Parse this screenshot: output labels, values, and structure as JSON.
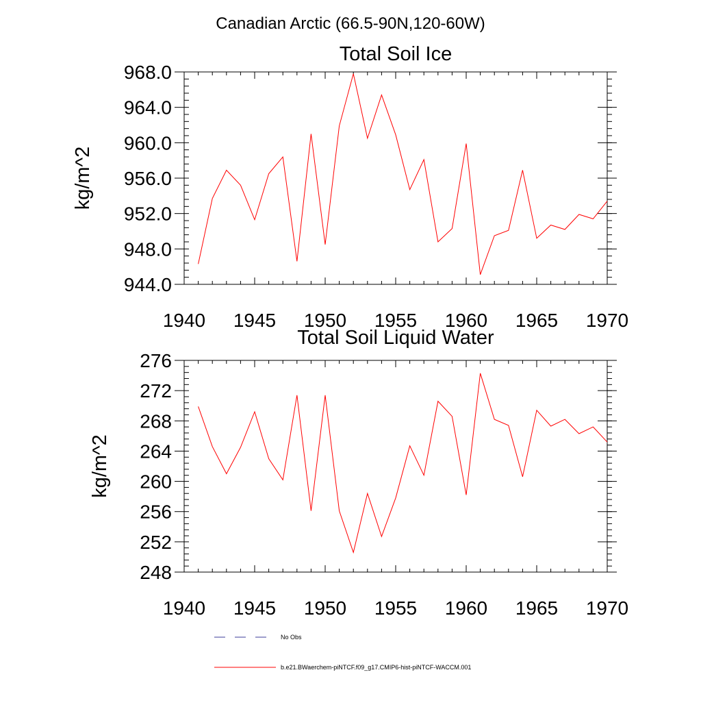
{
  "figure": {
    "main_title": "Canadian Arctic (66.5-90N,120-60W)"
  },
  "legend": {
    "placement": "bottom",
    "items": [
      {
        "label": "No Obs",
        "color": "#3b3b9a",
        "style": "dashed"
      },
      {
        "label": "b.e21.BWaerchem-piNTCF.f09_g17.CMIP6-hist-piNTCF-WACCM.001",
        "color": "#ff0000",
        "style": "solid"
      }
    ]
  },
  "chart_data": [
    {
      "type": "line",
      "title": "Total Soil Ice",
      "xlabel": "",
      "ylabel": "kg/m^2",
      "xlim": [
        1940,
        1970
      ],
      "ylim": [
        944,
        968
      ],
      "xticks": [
        1940,
        1945,
        1950,
        1955,
        1960,
        1965,
        1970
      ],
      "xtick_labels": [
        "1940",
        "1945",
        "1950",
        "1955",
        "1960",
        "1965",
        "1970"
      ],
      "yticks": [
        944,
        948,
        952,
        956,
        960,
        964,
        968
      ],
      "ytick_labels": [
        "944.0",
        "948.0",
        "952.0",
        "956.0",
        "960.0",
        "964.0",
        "968.0"
      ],
      "grid": false,
      "series": [
        {
          "name": "b.e21.BWaerchem-piNTCF.f09_g17.CMIP6-hist-piNTCF-WACCM.001",
          "color": "#ff0000",
          "x": [
            1941,
            1942,
            1943,
            1944,
            1945,
            1946,
            1947,
            1948,
            1949,
            1950,
            1951,
            1952,
            1953,
            1954,
            1955,
            1956,
            1957,
            1958,
            1959,
            1960,
            1961,
            1962,
            1963,
            1964,
            1965,
            1966,
            1967,
            1968,
            1969,
            1970
          ],
          "y": [
            946.3,
            953.7,
            956.9,
            955.2,
            951.3,
            956.5,
            958.4,
            946.6,
            961.0,
            948.5,
            961.9,
            967.8,
            960.5,
            965.4,
            960.9,
            954.7,
            958.1,
            948.8,
            950.3,
            959.9,
            945.1,
            949.5,
            950.1,
            956.9,
            949.2,
            950.7,
            950.2,
            951.9,
            951.4,
            953.4
          ]
        }
      ]
    },
    {
      "type": "line",
      "title": "Total Soil Liquid Water",
      "xlabel": "",
      "ylabel": "kg/m^2",
      "xlim": [
        1940,
        1970
      ],
      "ylim": [
        248,
        276
      ],
      "xticks": [
        1940,
        1945,
        1950,
        1955,
        1960,
        1965,
        1970
      ],
      "xtick_labels": [
        "1940",
        "1945",
        "1950",
        "1955",
        "1960",
        "1965",
        "1970"
      ],
      "yticks": [
        248,
        252,
        256,
        260,
        264,
        268,
        272,
        276
      ],
      "ytick_labels": [
        "248",
        "252",
        "256",
        "260",
        "264",
        "268",
        "272",
        "276"
      ],
      "grid": false,
      "series": [
        {
          "name": "b.e21.BWaerchem-piNTCF.f09_g17.CMIP6-hist-piNTCF-WACCM.001",
          "color": "#ff0000",
          "x": [
            1941,
            1942,
            1943,
            1944,
            1945,
            1946,
            1947,
            1948,
            1949,
            1950,
            1951,
            1952,
            1953,
            1954,
            1955,
            1956,
            1957,
            1958,
            1959,
            1960,
            1961,
            1962,
            1963,
            1964,
            1965,
            1966,
            1967,
            1968,
            1969,
            1970
          ],
          "y": [
            269.9,
            264.6,
            261.0,
            264.5,
            269.2,
            263.0,
            260.2,
            271.4,
            256.1,
            271.4,
            256.1,
            250.6,
            258.4,
            252.7,
            257.8,
            264.7,
            260.8,
            270.6,
            268.6,
            258.2,
            274.3,
            268.2,
            267.4,
            260.6,
            269.4,
            267.3,
            268.2,
            266.3,
            267.2,
            265.2
          ]
        }
      ]
    }
  ]
}
